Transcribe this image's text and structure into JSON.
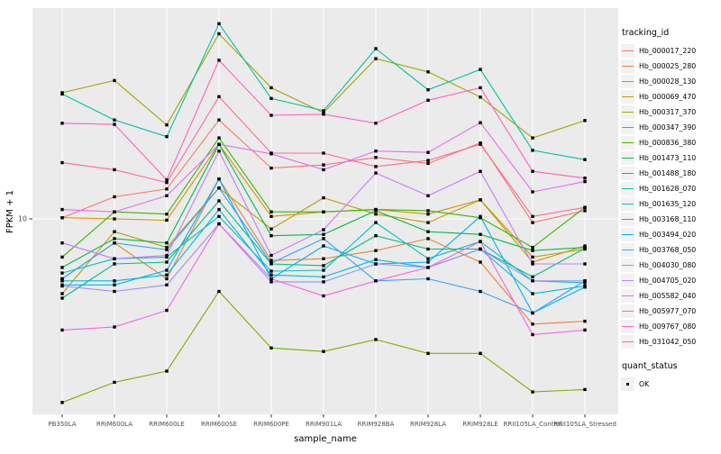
{
  "chart_data": {
    "type": "line",
    "title": "",
    "xlabel": "sample_name",
    "ylabel": "FPKM + 1",
    "yscale": "log10",
    "yticks": [
      10
    ],
    "ylim": [
      2,
      55
    ],
    "grid": true,
    "panel_bg": "#EBEBEB",
    "grid_color": "#FFFFFF",
    "axis_text_color": "#4D4D4D",
    "point_shape": "filled-square",
    "point_color": "#000000",
    "legend_position": "right",
    "categories": [
      "PB350LA",
      "RRIM600LA",
      "RRIM600LE",
      "RRIM600SE",
      "RRIM600PE",
      "RRIM901LA",
      "RRIM928BA",
      "RRIM928LA",
      "RRIM928LE",
      "RRII105LA_Control",
      "RRII105LA_Stressed"
    ],
    "series": [
      {
        "name": "Hb_000017_220",
        "color": "#F8766D",
        "values": [
          10.1,
          12.0,
          12.8,
          22.6,
          15.2,
          15.6,
          16.6,
          15.8,
          18.7,
          9.7,
          10.7
        ]
      },
      {
        "name": "Hb_000025_280",
        "color": "#EA8331",
        "values": [
          6.1,
          8.2,
          6.1,
          13.9,
          7.1,
          7.2,
          7.7,
          8.5,
          7.0,
          4.2,
          4.3
        ]
      },
      {
        "name": "Hb_000028_130",
        "color": "#D89000",
        "values": [
          10.1,
          10.0,
          9.9,
          18.5,
          10.2,
          10.6,
          10.8,
          10.4,
          11.7,
          7.3,
          7.8
        ]
      },
      {
        "name": "Hb_000069_470",
        "color": "#C09B00",
        "values": [
          5.4,
          9.0,
          7.9,
          12.9,
          9.2,
          11.9,
          10.4,
          9.7,
          11.7,
          7.0,
          8.0
        ]
      },
      {
        "name": "Hb_000317_370",
        "color": "#A3A500",
        "values": [
          28.3,
          31.3,
          21.7,
          46.0,
          29.5,
          24.0,
          37.5,
          33.6,
          27.3,
          19.5,
          22.5
        ]
      },
      {
        "name": "Hb_000347_390",
        "color": "#7CAE00",
        "values": [
          2.2,
          2.6,
          2.85,
          5.5,
          3.45,
          3.35,
          3.7,
          3.3,
          3.3,
          2.4,
          2.45
        ]
      },
      {
        "name": "Hb_000836_380",
        "color": "#39B600",
        "values": [
          7.3,
          10.6,
          10.4,
          19.5,
          10.6,
          10.6,
          10.8,
          10.7,
          10.1,
          7.9,
          11.0
        ]
      },
      {
        "name": "Hb_001473_110",
        "color": "#00BB4E",
        "values": [
          6.7,
          8.5,
          8.2,
          18.5,
          8.7,
          8.8,
          10.7,
          9.0,
          8.8,
          7.7,
          7.9
        ]
      },
      {
        "name": "Hb_001488_180",
        "color": "#00BF7D",
        "values": [
          5.2,
          6.9,
          7.0,
          11.6,
          6.9,
          6.8,
          8.7,
          7.8,
          7.8,
          6.2,
          7.85
        ]
      },
      {
        "name": "Hb_001628_070",
        "color": "#00C1A3",
        "values": [
          28.0,
          22.6,
          19.7,
          50.0,
          27.0,
          24.4,
          40.7,
          29.0,
          34.3,
          17.6,
          16.3
        ]
      },
      {
        "name": "Hb_001635_120",
        "color": "#00BFC4",
        "values": [
          6.4,
          7.2,
          7.3,
          10.2,
          6.5,
          6.55,
          9.7,
          7.2,
          8.3,
          6.0,
          5.9
        ]
      },
      {
        "name": "Hb_003168_110",
        "color": "#00BAE0",
        "values": [
          6.0,
          6.0,
          6.3,
          10.8,
          6.3,
          6.2,
          7.15,
          6.7,
          7.8,
          5.4,
          5.75
        ]
      },
      {
        "name": "Hb_003494_020",
        "color": "#00B0F6",
        "values": [
          5.8,
          5.8,
          6.55,
          13.9,
          6.1,
          8.0,
          6.9,
          7.0,
          10.2,
          4.6,
          5.7
        ]
      },
      {
        "name": "Hb_003768_050",
        "color": "#35A2FF",
        "values": [
          6.1,
          8.2,
          7.75,
          12.9,
          6.95,
          8.5,
          6.0,
          6.1,
          5.5,
          4.6,
          6.0
        ]
      },
      {
        "name": "Hb_004030_080",
        "color": "#9590FF",
        "values": [
          5.75,
          5.5,
          5.8,
          9.6,
          5.95,
          5.95,
          6.9,
          6.7,
          7.8,
          6.0,
          6.0
        ]
      },
      {
        "name": "Hb_004705_020",
        "color": "#C77CFF",
        "values": [
          8.2,
          7.2,
          7.4,
          17.5,
          7.4,
          9.15,
          14.6,
          12.1,
          14.8,
          6.9,
          6.9
        ]
      },
      {
        "name": "Hb_005582_040",
        "color": "#E76BF3",
        "values": [
          10.8,
          10.6,
          12.1,
          18.5,
          17.1,
          15.0,
          17.5,
          17.3,
          22.1,
          12.5,
          13.6
        ]
      },
      {
        "name": "Hb_005977_070",
        "color": "#FA62DB",
        "values": [
          4.0,
          4.1,
          4.7,
          9.6,
          6.1,
          5.3,
          6.0,
          6.7,
          8.3,
          3.85,
          4.0
        ]
      },
      {
        "name": "Hb_009767_080",
        "color": "#FF62BC",
        "values": [
          22.0,
          21.8,
          13.8,
          37.0,
          23.5,
          23.7,
          22.0,
          26.6,
          29.5,
          14.8,
          14.0
        ]
      },
      {
        "name": "Hb_031042_050",
        "color": "#FF6A98",
        "values": [
          15.9,
          15.0,
          13.5,
          27.4,
          17.2,
          17.2,
          15.4,
          16.2,
          18.5,
          10.2,
          11.0
        ]
      }
    ],
    "legend": {
      "series_title": "tracking_id",
      "shape_title": "quant_status",
      "shape_items": [
        {
          "label": "OK"
        }
      ]
    }
  }
}
